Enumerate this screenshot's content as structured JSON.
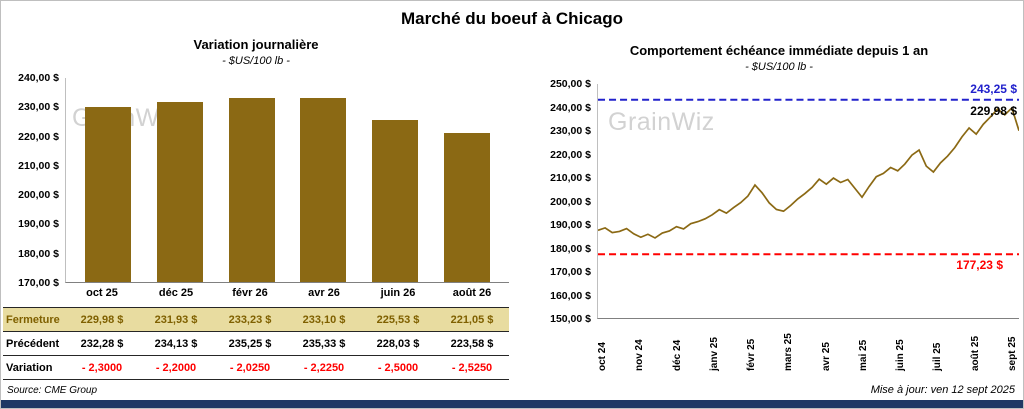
{
  "page": {
    "title": "Marché du boeuf à Chicago",
    "source_note": "Source: CME Group",
    "updated_note": "Mise à jour: ven 12 sept 2025",
    "watermark": "GrainWiz",
    "bottom_bar_color": "#1F3864"
  },
  "table": {
    "highlight_bg": "#E8DCA0",
    "highlight_fg": "#7F6000",
    "negative_color": "#FF0000",
    "rows": [
      {
        "label": "Fermeture",
        "values": [
          "229,98  $",
          "231,93  $",
          "233,23  $",
          "233,10  $",
          "225,53  $",
          "221,05  $"
        ]
      },
      {
        "label": "Précédent",
        "values": [
          "232,28  $",
          "234,13  $",
          "235,25  $",
          "235,33  $",
          "228,03  $",
          "223,58  $"
        ]
      },
      {
        "label": "Variation",
        "values": [
          "- 2,3000",
          "- 2,2000",
          "- 2,0250",
          "- 2,2250",
          "- 2,5000",
          "- 2,5250"
        ]
      }
    ]
  },
  "chart_data": [
    {
      "type": "bar",
      "title": "Variation  journalière",
      "subtitle": "- $US/100 lb -",
      "categories": [
        "oct 25",
        "déc 25",
        "févr 26",
        "avr 26",
        "juin 26",
        "août 26"
      ],
      "values": [
        229.98,
        231.93,
        233.23,
        233.1,
        225.53,
        221.05
      ],
      "ylim": [
        170,
        240
      ],
      "ytick_step": 10,
      "ytick_labels": [
        "240,00 $",
        "230,00 $",
        "220,00 $",
        "210,00 $",
        "200,00 $",
        "190,00 $",
        "180,00 $",
        "170,00 $"
      ],
      "bar_color": "#8B6914",
      "grid": false,
      "legend": "none"
    },
    {
      "type": "line",
      "title": "Comportement  échéance  immédiate  depuis 1 an",
      "subtitle": "- $US/100 lb -",
      "x_labels": [
        "oct 24",
        "nov 24",
        "déc 24",
        "janv 25",
        "févr 25",
        "mars 25",
        "avr 25",
        "mai 25",
        "juin 25",
        "juil 25",
        "août 25",
        "sept 25"
      ],
      "values": [
        187.5,
        188.5,
        186.5,
        187.0,
        188.2,
        186.0,
        184.5,
        185.8,
        184.2,
        186.3,
        187.2,
        189.0,
        188.1,
        190.3,
        191.2,
        192.4,
        194.1,
        196.3,
        194.8,
        197.2,
        199.3,
        202.1,
        206.8,
        203.5,
        199.2,
        196.4,
        195.6,
        198.1,
        200.9,
        203.2,
        205.8,
        209.3,
        207.2,
        209.8,
        207.9,
        209.2,
        205.4,
        201.6,
        206.2,
        210.4,
        211.8,
        214.3,
        212.9,
        215.8,
        219.6,
        221.8,
        214.9,
        212.4,
        216.3,
        219.2,
        222.8,
        227.4,
        231.2,
        228.6,
        232.8,
        235.9,
        239.3,
        236.8,
        239.8,
        229.98
      ],
      "ylim": [
        150,
        250
      ],
      "ytick_step": 10,
      "ytick_labels": [
        "250,00 $",
        "240,00 $",
        "230,00 $",
        "220,00 $",
        "210,00 $",
        "200,00 $",
        "190,00 $",
        "180,00 $",
        "170,00 $",
        "160,00 $",
        "150,00 $"
      ],
      "line_color": "#8B6914",
      "grid": false,
      "legend": "none",
      "reference_lines": [
        {
          "value": 243.25,
          "label": "243,25 $",
          "color": "#2222CC",
          "style": "dashed"
        },
        {
          "value": 177.23,
          "label": "177,23 $",
          "color": "#FF0000",
          "style": "dashed"
        }
      ],
      "last_point": {
        "value": 229.98,
        "label": "229,98 $"
      }
    }
  ]
}
